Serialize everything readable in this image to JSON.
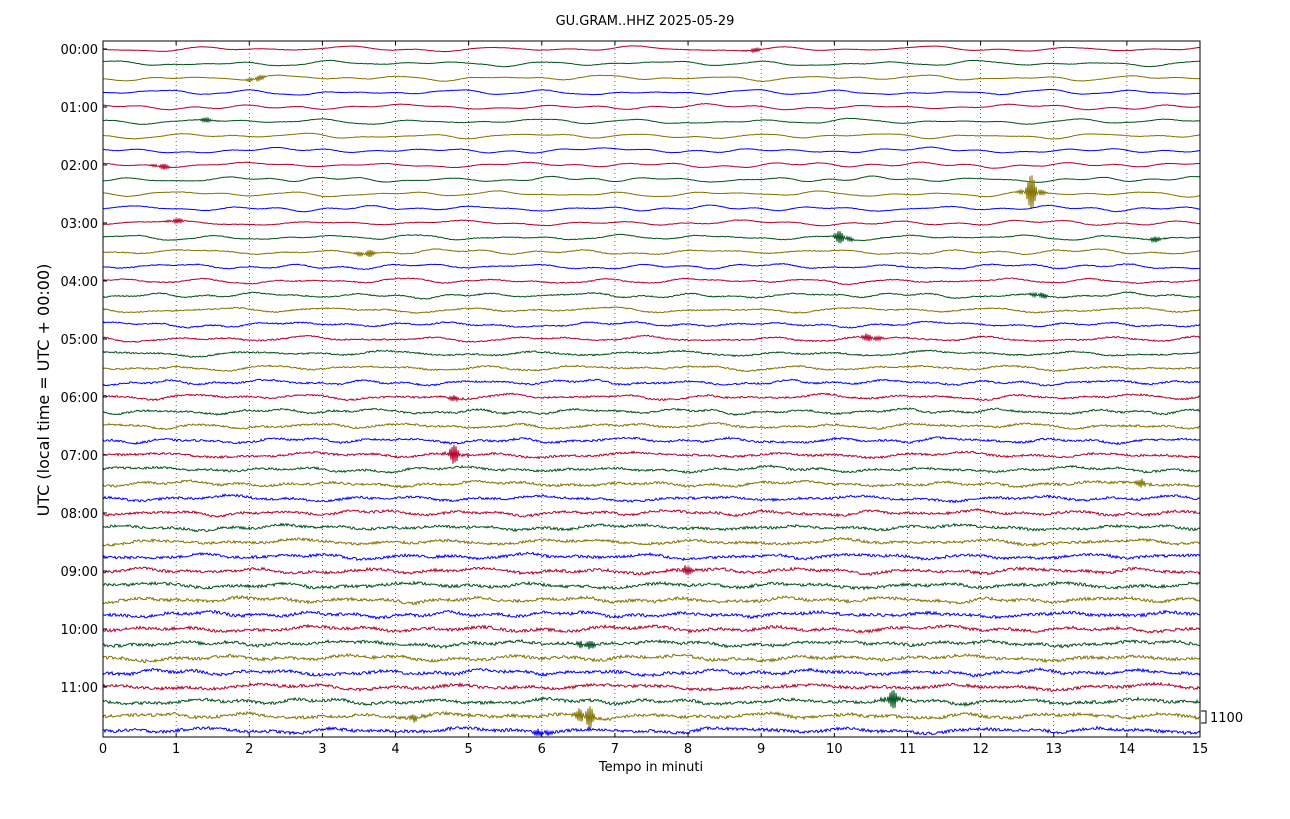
{
  "chart_data": {
    "type": "line",
    "title": "GU.GRAM..HHZ 2025-05-29",
    "xlabel": "Tempo in minuti",
    "ylabel": "UTC (local time = UTC + 00:00)",
    "xlim": [
      0,
      15
    ],
    "x_ticks": [
      "0",
      "1",
      "2",
      "3",
      "4",
      "5",
      "6",
      "7",
      "8",
      "9",
      "10",
      "11",
      "12",
      "13",
      "14",
      "15"
    ],
    "y_ticks": [
      "00:00",
      "01:00",
      "02:00",
      "03:00",
      "04:00",
      "05:00",
      "06:00",
      "07:00",
      "08:00",
      "09:00",
      "10:00",
      "11:00"
    ],
    "trace_interval_minutes": 15,
    "trace_count": 48,
    "color_cycle": [
      "#b2002a",
      "#00521a",
      "#847200",
      "#0000ff"
    ],
    "scale_label": "1100",
    "grid": true,
    "events": [
      {
        "trace": 0,
        "minute": 8.9,
        "amp": 0.4
      },
      {
        "trace": 2,
        "minute": 2.1,
        "amp": 0.6
      },
      {
        "trace": 5,
        "minute": 1.4,
        "amp": 0.4
      },
      {
        "trace": 8,
        "minute": 0.8,
        "amp": 0.6
      },
      {
        "trace": 10,
        "minute": 12.7,
        "amp": 3.0
      },
      {
        "trace": 12,
        "minute": 1.0,
        "amp": 0.5
      },
      {
        "trace": 13,
        "minute": 10.1,
        "amp": 1.2
      },
      {
        "trace": 13,
        "minute": 14.4,
        "amp": 0.5
      },
      {
        "trace": 14,
        "minute": 3.6,
        "amp": 0.8
      },
      {
        "trace": 17,
        "minute": 12.8,
        "amp": 0.6
      },
      {
        "trace": 20,
        "minute": 10.5,
        "amp": 0.8
      },
      {
        "trace": 24,
        "minute": 4.8,
        "amp": 0.5
      },
      {
        "trace": 28,
        "minute": 4.8,
        "amp": 1.6
      },
      {
        "trace": 30,
        "minute": 14.2,
        "amp": 0.7
      },
      {
        "trace": 36,
        "minute": 8.0,
        "amp": 0.8
      },
      {
        "trace": 41,
        "minute": 6.6,
        "amp": 1.1
      },
      {
        "trace": 45,
        "minute": 10.8,
        "amp": 1.6
      },
      {
        "trace": 46,
        "minute": 6.6,
        "amp": 2.4
      },
      {
        "trace": 46,
        "minute": 4.3,
        "amp": 0.7
      },
      {
        "trace": 47,
        "minute": 6.0,
        "amp": 0.8
      }
    ]
  }
}
